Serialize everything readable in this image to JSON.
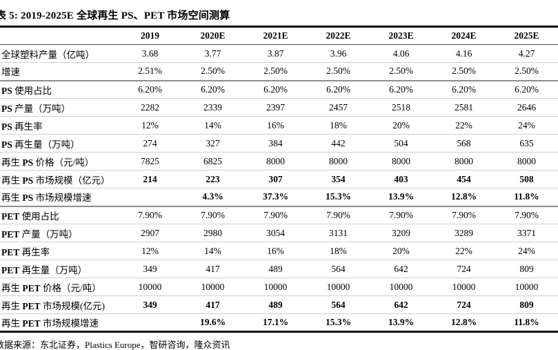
{
  "title": "表 5:  2019-2025E 全球再生 PS、PET 市场空间测算",
  "table": {
    "columns": [
      "",
      "2019",
      "2020E",
      "2021E",
      "2022E",
      "2023E",
      "2024E",
      "2025E"
    ],
    "rows": [
      {
        "label": "全球塑料产量（亿吨）",
        "values": [
          "3.68",
          "3.77",
          "3.87",
          "3.96",
          "4.06",
          "4.16",
          "4.27"
        ],
        "bold_values": false,
        "group_end": false
      },
      {
        "label": "增速",
        "values": [
          "2.51%",
          "2.50%",
          "2.50%",
          "2.50%",
          "2.50%",
          "2.50%",
          "2.50%"
        ],
        "bold_values": false,
        "group_end": true
      },
      {
        "label": "PS 使用占比",
        "values": [
          "6.20%",
          "6.20%",
          "6.20%",
          "6.20%",
          "6.20%",
          "6.20%",
          "6.20%"
        ],
        "bold_values": false,
        "group_end": false
      },
      {
        "label": "PS 产量（万吨）",
        "values": [
          "2282",
          "2339",
          "2397",
          "2457",
          "2518",
          "2581",
          "2646"
        ],
        "bold_values": false,
        "group_end": false
      },
      {
        "label": "PS 再生率",
        "values": [
          "12%",
          "14%",
          "16%",
          "18%",
          "20%",
          "22%",
          "24%"
        ],
        "bold_values": false,
        "group_end": false
      },
      {
        "label": "PS 再生量（万吨）",
        "values": [
          "274",
          "327",
          "384",
          "442",
          "504",
          "568",
          "635"
        ],
        "bold_values": false,
        "group_end": false
      },
      {
        "label": "再生 PS 价格（元/吨）",
        "values": [
          "7825",
          "6825",
          "8000",
          "8000",
          "8000",
          "8000",
          "8000"
        ],
        "bold_values": false,
        "group_end": false
      },
      {
        "label": "再生 PS 市场规模（亿元）",
        "values": [
          "214",
          "223",
          "307",
          "354",
          "403",
          "454",
          "508"
        ],
        "bold_values": true,
        "group_end": false
      },
      {
        "label": "再生 PS 市场规模增速",
        "values": [
          "",
          "4.3%",
          "37.3%",
          "15.3%",
          "13.9%",
          "12.8%",
          "11.8%"
        ],
        "bold_values": true,
        "group_end": true
      },
      {
        "label": "PET 使用占比",
        "values": [
          "7.90%",
          "7.90%",
          "7.90%",
          "7.90%",
          "7.90%",
          "7.90%",
          "7.90%"
        ],
        "bold_values": false,
        "group_end": false
      },
      {
        "label": "PET 产量（万吨）",
        "values": [
          "2907",
          "2980",
          "3054",
          "3131",
          "3209",
          "3289",
          "3371"
        ],
        "bold_values": false,
        "group_end": false
      },
      {
        "label": "PET 再生率",
        "values": [
          "12%",
          "14%",
          "16%",
          "18%",
          "20%",
          "22%",
          "24%"
        ],
        "bold_values": false,
        "group_end": false
      },
      {
        "label": "PET 再生量（万吨）",
        "values": [
          "349",
          "417",
          "489",
          "564",
          "642",
          "724",
          "809"
        ],
        "bold_values": false,
        "group_end": false
      },
      {
        "label": "再生 PET 价格（元/吨）",
        "values": [
          "10000",
          "10000",
          "10000",
          "10000",
          "10000",
          "10000",
          "10000"
        ],
        "bold_values": false,
        "group_end": false
      },
      {
        "label": "再生 PET 市场规模(亿元)",
        "values": [
          "349",
          "417",
          "489",
          "564",
          "642",
          "724",
          "809"
        ],
        "bold_values": true,
        "group_end": false
      },
      {
        "label": "再生 PET 市场规模增速",
        "values": [
          "",
          "19.6%",
          "17.1%",
          "15.3%",
          "13.9%",
          "12.8%",
          "11.8%"
        ],
        "bold_values": true,
        "group_end": false
      }
    ]
  },
  "footer": {
    "source": "数据来源：东北证券，Plastics Europe，智研咨询，隆众资讯"
  }
}
